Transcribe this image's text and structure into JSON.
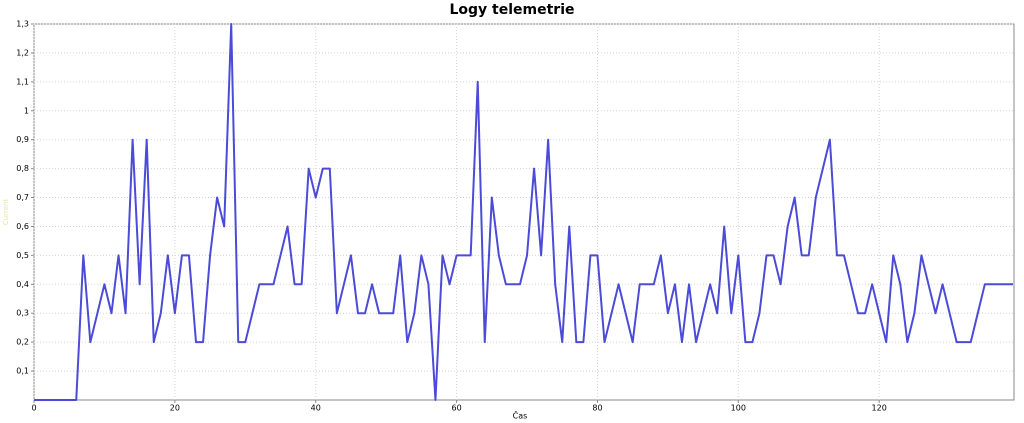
{
  "chart_data": {
    "type": "line",
    "title": "Logy telemetrie",
    "x_label": "Čas",
    "y_label": "Current",
    "x": [
      0,
      1,
      2,
      3,
      4,
      5,
      6,
      7,
      8,
      9,
      10,
      11,
      12,
      13,
      14,
      15,
      16,
      17,
      18,
      19,
      20,
      21,
      22,
      23,
      24,
      25,
      26,
      27,
      28,
      29,
      30,
      31,
      32,
      33,
      34,
      35,
      36,
      37,
      38,
      39,
      40,
      41,
      42,
      43,
      44,
      45,
      46,
      47,
      48,
      49,
      50,
      51,
      52,
      53,
      54,
      55,
      56,
      57,
      58,
      59,
      60,
      61,
      62,
      63,
      64,
      65,
      66,
      67,
      68,
      69,
      70,
      71,
      72,
      73,
      74,
      75,
      76,
      77,
      78,
      79,
      80,
      81,
      82,
      83,
      84,
      85,
      86,
      87,
      88,
      89,
      90,
      91,
      92,
      93,
      94,
      95,
      96,
      97,
      98,
      99,
      100,
      101,
      102,
      103,
      104,
      105,
      106,
      107,
      108,
      109,
      110,
      111,
      112,
      113,
      114,
      115,
      116,
      117,
      118,
      119,
      120,
      121,
      122,
      123,
      124,
      125,
      126,
      127,
      128,
      129,
      130,
      131,
      132,
      133,
      134,
      135,
      136,
      137,
      138,
      139
    ],
    "values": [
      0,
      0,
      0,
      0,
      0,
      0,
      0,
      0.5,
      0.2,
      0.3,
      0.4,
      0.3,
      0.5,
      0.3,
      0.9,
      0.4,
      0.9,
      0.2,
      0.3,
      0.5,
      0.3,
      0.5,
      0.5,
      0.2,
      0.2,
      0.5,
      0.7,
      0.6,
      1.3,
      0.2,
      0.2,
      0.3,
      0.4,
      0.4,
      0.4,
      0.5,
      0.6,
      0.4,
      0.4,
      0.8,
      0.7,
      0.8,
      0.8,
      0.3,
      0.4,
      0.5,
      0.3,
      0.3,
      0.4,
      0.3,
      0.3,
      0.3,
      0.5,
      0.2,
      0.3,
      0.5,
      0.4,
      0,
      0.5,
      0.4,
      0.5,
      0.5,
      0.5,
      1.1,
      0.2,
      0.7,
      0.5,
      0.4,
      0.4,
      0.4,
      0.5,
      0.8,
      0.5,
      0.9,
      0.4,
      0.2,
      0.6,
      0.2,
      0.2,
      0.5,
      0.5,
      0.2,
      0.3,
      0.4,
      0.3,
      0.2,
      0.4,
      0.4,
      0.4,
      0.5,
      0.3,
      0.4,
      0.2,
      0.4,
      0.2,
      0.3,
      0.4,
      0.3,
      0.6,
      0.3,
      0.5,
      0.2,
      0.2,
      0.3,
      0.5,
      0.5,
      0.4,
      0.6,
      0.7,
      0.5,
      0.5,
      0.7,
      0.8,
      0.9,
      0.5,
      0.5,
      0.4,
      0.3,
      0.3,
      0.4,
      0.3,
      0.2,
      0.5,
      0.4,
      0.2,
      0.3,
      0.5,
      0.4,
      0.3,
      0.4,
      0.3,
      0.2,
      0.2,
      0.2,
      0.3,
      0.4,
      0.4,
      0.4,
      0.4,
      0.4
    ],
    "color": "#4b4bd8",
    "xlim": [
      0,
      139
    ],
    "xticks": [
      0,
      20,
      40,
      60,
      80,
      100,
      120
    ],
    "ylim": [
      0,
      1.3
    ],
    "yticks": [
      {
        "value": 0.1,
        "label": "0,1"
      },
      {
        "value": 0.2,
        "label": "0,2"
      },
      {
        "value": 0.3,
        "label": "0,3"
      },
      {
        "value": 0.4,
        "label": "0,4"
      },
      {
        "value": 0.5,
        "label": "0,5"
      },
      {
        "value": 0.6,
        "label": "0,6"
      },
      {
        "value": 0.7,
        "label": "0,7"
      },
      {
        "value": 0.8,
        "label": "0,8"
      },
      {
        "value": 0.9,
        "label": "0,9"
      },
      {
        "value": 1,
        "label": "1"
      },
      {
        "value": 1.1,
        "label": "1,1"
      },
      {
        "value": 1.2,
        "label": "1,2"
      },
      {
        "value": 1.3,
        "label": "1,3"
      }
    ],
    "grid": true
  }
}
